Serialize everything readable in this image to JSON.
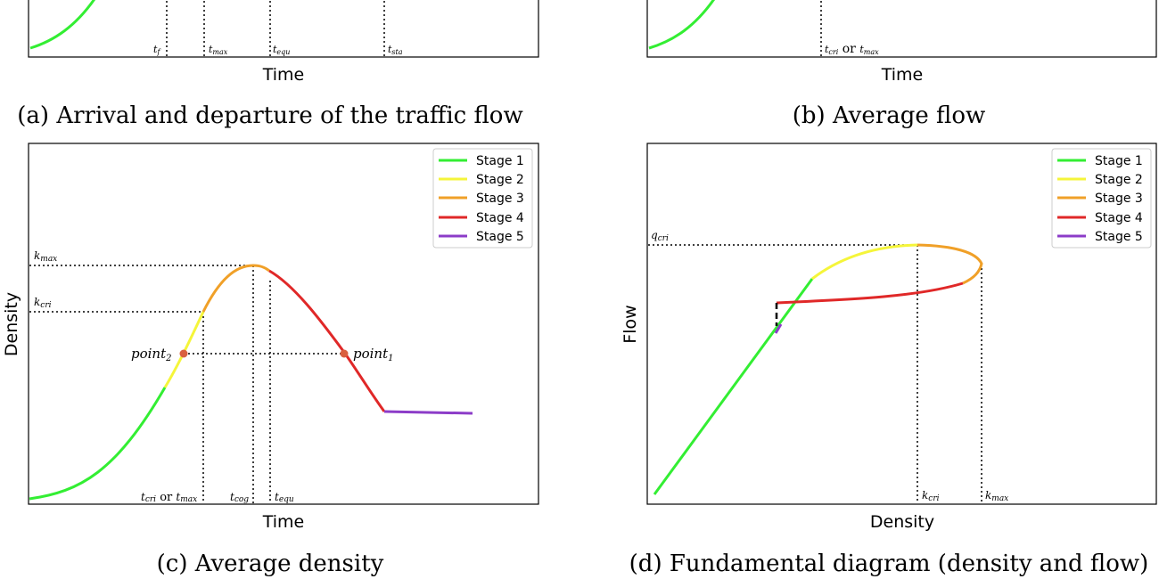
{
  "colors": {
    "stage1": "#33ee33",
    "stage2": "#f5f53a",
    "stage3": "#f0a028",
    "stage4": "#e02828",
    "stage5": "#8c3cc8"
  },
  "panel_a": {
    "caption": "(a) Arrival and departure of the traffic flow",
    "xlabel": "Time",
    "tick_tf": "t",
    "tick_tf_sub": "f",
    "tick_tmax": "t",
    "tick_tmax_sub": "max",
    "tick_tequ": "t",
    "tick_tequ_sub": "equ",
    "tick_tsta": "t",
    "tick_tsta_sub": "sta"
  },
  "panel_b": {
    "caption": "(b) Average flow",
    "xlabel": "Time",
    "tick_t": "t",
    "tick_sub1": "cri",
    "tick_or": " or ",
    "tick_t2": "t",
    "tick_sub2": "max"
  },
  "panel_c": {
    "caption": "(c) Average density",
    "xlabel": "Time",
    "ylabel": "Density",
    "kmax": "k",
    "kmax_sub": "max",
    "kcri": "k",
    "kcri_sub": "cri",
    "point1": "point",
    "point1_sub": "1",
    "point2": "point",
    "point2_sub": "2",
    "tick1_t": "t",
    "tick1_sub": "cri",
    "tick1_or": " or ",
    "tick1_t2": "t",
    "tick1_sub2": "max",
    "tick2_t": "t",
    "tick2_sub": "cog",
    "tick3_t": "t",
    "tick3_sub": "equ",
    "legend": [
      "Stage 1",
      "Stage 2",
      "Stage 3",
      "Stage 4",
      "Stage 5"
    ]
  },
  "panel_d": {
    "caption": "(d) Fundamental diagram (density and flow)",
    "xlabel": "Density",
    "ylabel": "Flow",
    "qcri": "q",
    "qcri_sub": "cri",
    "kcri": "k",
    "kcri_sub": "cri",
    "kmax": "k",
    "kmax_sub": "max",
    "legend": [
      "Stage 1",
      "Stage 2",
      "Stage 3",
      "Stage 4",
      "Stage 5"
    ]
  },
  "chart_data": [
    {
      "type": "line",
      "panel": "a",
      "title": "(a) Arrival and departure of the traffic flow",
      "xlabel": "Time",
      "ylabel": "",
      "grid": false,
      "x_markers": [
        "t_f",
        "t_max",
        "t_equ",
        "t_sta"
      ],
      "series": []
    },
    {
      "type": "line",
      "panel": "b",
      "title": "(b) Average flow",
      "xlabel": "Time",
      "ylabel": "",
      "grid": false,
      "x_markers": [
        "t_cri or t_max"
      ],
      "series": []
    },
    {
      "type": "line",
      "panel": "c",
      "title": "(c) Average density",
      "xlabel": "Time",
      "ylabel": "Density",
      "grid": false,
      "legend_position": "top-right",
      "x_markers": [
        "t_cri or t_max",
        "t_cog",
        "t_equ"
      ],
      "y_markers": [
        "k_max",
        "k_cri"
      ],
      "series": [
        {
          "name": "Stage 1",
          "x": [
            0,
            0.1,
            0.2,
            0.27
          ],
          "y": [
            0.01,
            0.06,
            0.2,
            0.32
          ]
        },
        {
          "name": "Stage 2",
          "x": [
            0.27,
            0.32
          ],
          "y": [
            0.32,
            0.53
          ]
        },
        {
          "name": "Stage 3",
          "x": [
            0.32,
            0.4,
            0.46
          ],
          "y": [
            0.53,
            0.7,
            0.71
          ]
        },
        {
          "name": "Stage 4",
          "x": [
            0.46,
            0.6,
            0.72
          ],
          "y": [
            0.71,
            0.42,
            0.25
          ]
        },
        {
          "name": "Stage 5",
          "x": [
            0.72,
            0.9
          ],
          "y": [
            0.25,
            0.24
          ]
        }
      ]
    },
    {
      "type": "line",
      "panel": "d",
      "title": "(d) Fundamental diagram (density and flow)",
      "xlabel": "Density",
      "ylabel": "Flow",
      "grid": false,
      "legend_position": "top-right",
      "x_markers": [
        "k_cri",
        "k_max"
      ],
      "y_markers": [
        "q_cri"
      ],
      "series": [
        {
          "name": "Stage 1",
          "x": [
            0.01,
            0.32
          ],
          "y": [
            0.02,
            0.66
          ]
        },
        {
          "name": "Stage 2",
          "x": [
            0.32,
            0.53
          ],
          "y": [
            0.66,
            0.76
          ]
        },
        {
          "name": "Stage 3",
          "x": [
            0.53,
            0.66,
            0.53
          ],
          "y": [
            0.76,
            0.72,
            0.76
          ]
        },
        {
          "name": "Stage 4",
          "x": [
            0.66,
            0.4,
            0.25
          ],
          "y": [
            0.72,
            0.6,
            0.57
          ]
        },
        {
          "name": "Stage 5",
          "x": [
            0.25,
            0.26
          ],
          "y": [
            0.5,
            0.52
          ]
        }
      ]
    }
  ]
}
